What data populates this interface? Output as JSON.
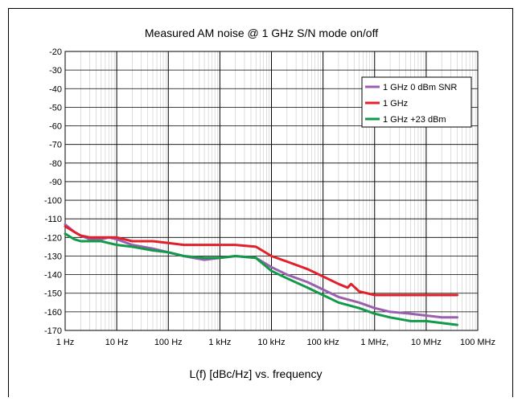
{
  "chart_data": {
    "type": "line",
    "title": "Measured AM noise @ 1 GHz S/N mode on/off",
    "xlabel": "L(f) [dBc/Hz] vs. frequency",
    "ylabel": "",
    "x_scale": "log",
    "xlim": [
      1,
      100000000
    ],
    "ylim": [
      -170,
      -20
    ],
    "x_ticks": [
      1,
      10,
      100,
      1000,
      10000,
      100000,
      1000000,
      10000000,
      100000000
    ],
    "x_tick_labels": [
      "1 Hz",
      "10 Hz",
      "100 Hz",
      "1 kHz",
      "10 kHz",
      "100 kHz",
      "1 MHz,",
      "10 MHz",
      "100 MHz"
    ],
    "y_ticks": [
      -20,
      -30,
      -40,
      -50,
      -60,
      -70,
      -80,
      -90,
      -100,
      -110,
      -120,
      -130,
      -140,
      -150,
      -160,
      -170
    ],
    "y_tick_labels": [
      "-20",
      "-30",
      "-40",
      "-50",
      "-60",
      "-70",
      "-80",
      "-90",
      "-100",
      "-110",
      "-120",
      "-130",
      "-140",
      "-150",
      "-160",
      "-170"
    ],
    "grid": true,
    "legend_position": "top-right",
    "series": [
      {
        "name": "1 GHz 0 dBm SNR",
        "color": "#9b5fb0",
        "x": [
          1,
          1.5,
          2,
          3,
          5,
          7,
          10,
          20,
          50,
          100,
          200,
          500,
          1000,
          2000,
          5000,
          10000,
          20000,
          50000,
          100000,
          200000,
          500000,
          1000000,
          2000000,
          5000000,
          10000000,
          20000000,
          40000000
        ],
        "y": [
          -113,
          -117,
          -119,
          -121,
          -121,
          -120,
          -121,
          -124,
          -126,
          -128,
          -130,
          -132,
          -131,
          -130,
          -131,
          -136,
          -140,
          -144,
          -148,
          -152,
          -155,
          -158,
          -160,
          -161,
          -162,
          -163,
          -163
        ]
      },
      {
        "name": "1 GHz",
        "color": "#e0202a",
        "x": [
          1,
          1.5,
          2,
          3,
          5,
          7,
          10,
          20,
          50,
          100,
          200,
          500,
          1000,
          2000,
          5000,
          10000,
          20000,
          50000,
          100000,
          200000,
          300000,
          350000,
          500000,
          1000000,
          2000000,
          5000000,
          10000000,
          20000000,
          40000000
        ],
        "y": [
          -114,
          -117,
          -119,
          -120,
          -120,
          -120,
          -120,
          -122,
          -122,
          -123,
          -124,
          -124,
          -124,
          -124,
          -125,
          -130,
          -133,
          -137,
          -141,
          -145,
          -147,
          -145,
          -149,
          -151,
          -151,
          -151,
          -151,
          -151,
          -151
        ]
      },
      {
        "name": "1 GHz +23 dBm",
        "color": "#129a4a",
        "x": [
          1,
          1.5,
          2,
          3,
          5,
          7,
          10,
          20,
          50,
          100,
          200,
          500,
          1000,
          2000,
          5000,
          10000,
          20000,
          50000,
          100000,
          200000,
          500000,
          1000000,
          2000000,
          5000000,
          10000000,
          20000000,
          40000000
        ],
        "y": [
          -118,
          -121,
          -122,
          -122,
          -122,
          -123,
          -124,
          -125,
          -127,
          -128,
          -130,
          -131,
          -131,
          -130,
          -131,
          -138,
          -142,
          -147,
          -151,
          -155,
          -158,
          -161,
          -163,
          -165,
          -165,
          -166,
          -167
        ]
      }
    ]
  }
}
